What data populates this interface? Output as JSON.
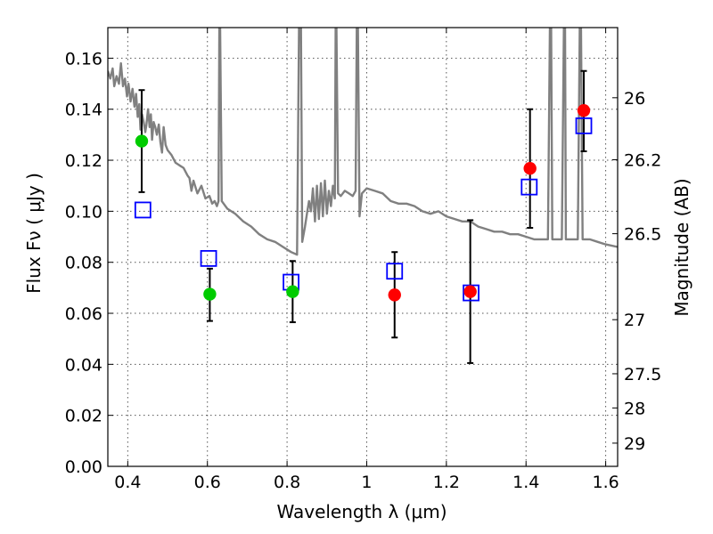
{
  "chart_data": {
    "type": "scatter",
    "xlabel": "Wavelength  λ (μm)",
    "ylabel": "Flux  Fν  ( μJy )",
    "ylabel_right": "Magnitude (AB)",
    "xlim": [
      0.35,
      1.63
    ],
    "ylim": [
      0.0,
      0.172
    ],
    "grid": true,
    "x_ticks": [
      0.4,
      0.6,
      0.8,
      1.0,
      1.2,
      1.4,
      1.6
    ],
    "x_tick_labels": [
      "0.4",
      "0.6",
      "0.8",
      "1",
      "1.2",
      "1.4",
      "1.6"
    ],
    "y_ticks": [
      0.0,
      0.02,
      0.04,
      0.06,
      0.08,
      0.1,
      0.12,
      0.14,
      0.16
    ],
    "y_tick_labels": [
      "0.00",
      "0.02",
      "0.04",
      "0.06",
      "0.08",
      "0.10",
      "0.12",
      "0.14",
      "0.16"
    ],
    "right_ticks": [
      {
        "label": "26",
        "flux": 0.1445
      },
      {
        "label": "26.2",
        "flux": 0.1202
      },
      {
        "label": "26.5",
        "flux": 0.0912
      },
      {
        "label": "27",
        "flux": 0.0575
      },
      {
        "label": "27.5",
        "flux": 0.0363
      },
      {
        "label": "28",
        "flux": 0.0229
      },
      {
        "label": "29",
        "flux": 0.0091
      }
    ],
    "observed": [
      {
        "x": 0.435,
        "y": 0.1275,
        "yerr_lo": 0.1075,
        "yerr_hi": 0.1475,
        "color": "#00cc00"
      },
      {
        "x": 0.606,
        "y": 0.0675,
        "yerr_lo": 0.057,
        "yerr_hi": 0.0775,
        "color": "#00cc00"
      },
      {
        "x": 0.814,
        "y": 0.0685,
        "yerr_lo": 0.0565,
        "yerr_hi": 0.0805,
        "color": "#00cc00"
      },
      {
        "x": 1.07,
        "y": 0.0672,
        "yerr_lo": 0.0505,
        "yerr_hi": 0.084,
        "color": "#ff0000"
      },
      {
        "x": 1.26,
        "y": 0.0685,
        "yerr_lo": 0.0405,
        "yerr_hi": 0.0965,
        "color": "#ff0000"
      },
      {
        "x": 1.41,
        "y": 0.1168,
        "yerr_lo": 0.0935,
        "yerr_hi": 0.14,
        "color": "#ff0000"
      },
      {
        "x": 1.545,
        "y": 0.1395,
        "yerr_lo": 0.1235,
        "yerr_hi": 0.155,
        "color": "#ff0000"
      }
    ],
    "model_fluxes": {
      "color": "#0000ff",
      "points": [
        {
          "x": 0.438,
          "y": 0.1005
        },
        {
          "x": 0.603,
          "y": 0.0815
        },
        {
          "x": 0.81,
          "y": 0.0722
        },
        {
          "x": 1.07,
          "y": 0.0765
        },
        {
          "x": 1.262,
          "y": 0.068
        },
        {
          "x": 1.408,
          "y": 0.1095
        },
        {
          "x": 1.545,
          "y": 0.1335
        }
      ]
    },
    "model_spectrum": {
      "color": "#808080",
      "points": [
        [
          0.35,
          0.155
        ],
        [
          0.356,
          0.152
        ],
        [
          0.362,
          0.156
        ],
        [
          0.366,
          0.149
        ],
        [
          0.372,
          0.153
        ],
        [
          0.378,
          0.15
        ],
        [
          0.383,
          0.158
        ],
        [
          0.388,
          0.149
        ],
        [
          0.393,
          0.152
        ],
        [
          0.398,
          0.145
        ],
        [
          0.402,
          0.15
        ],
        [
          0.407,
          0.143
        ],
        [
          0.412,
          0.148
        ],
        [
          0.417,
          0.141
        ],
        [
          0.421,
          0.146
        ],
        [
          0.425,
          0.137
        ],
        [
          0.429,
          0.142
        ],
        [
          0.432,
          0.132
        ],
        [
          0.436,
          0.138
        ],
        [
          0.44,
          0.135
        ],
        [
          0.444,
          0.131
        ],
        [
          0.447,
          0.134
        ],
        [
          0.451,
          0.14
        ],
        [
          0.455,
          0.133
        ],
        [
          0.458,
          0.138
        ],
        [
          0.461,
          0.128
        ],
        [
          0.465,
          0.135
        ],
        [
          0.469,
          0.133
        ],
        [
          0.473,
          0.13
        ],
        [
          0.478,
          0.134
        ],
        [
          0.482,
          0.127
        ],
        [
          0.486,
          0.123
        ],
        [
          0.49,
          0.133
        ],
        [
          0.495,
          0.126
        ],
        [
          0.5,
          0.124
        ],
        [
          0.51,
          0.122
        ],
        [
          0.52,
          0.119
        ],
        [
          0.53,
          0.118
        ],
        [
          0.54,
          0.117
        ],
        [
          0.55,
          0.114
        ],
        [
          0.555,
          0.113
        ],
        [
          0.56,
          0.108
        ],
        [
          0.565,
          0.112
        ],
        [
          0.575,
          0.107
        ],
        [
          0.585,
          0.11
        ],
        [
          0.595,
          0.105
        ],
        [
          0.605,
          0.106
        ],
        [
          0.612,
          0.103
        ],
        [
          0.618,
          0.104
        ],
        [
          0.624,
          0.102
        ],
        [
          0.628,
          0.104
        ],
        [
          0.63,
          0.172
        ],
        [
          0.632,
          0.172
        ],
        [
          0.636,
          0.104
        ],
        [
          0.65,
          0.101
        ],
        [
          0.67,
          0.099
        ],
        [
          0.69,
          0.096
        ],
        [
          0.71,
          0.094
        ],
        [
          0.73,
          0.091
        ],
        [
          0.75,
          0.089
        ],
        [
          0.77,
          0.088
        ],
        [
          0.79,
          0.086
        ],
        [
          0.81,
          0.084
        ],
        [
          0.825,
          0.083
        ],
        [
          0.83,
          0.172
        ],
        [
          0.835,
          0.172
        ],
        [
          0.838,
          0.088
        ],
        [
          0.845,
          0.094
        ],
        [
          0.85,
          0.099
        ],
        [
          0.855,
          0.104
        ],
        [
          0.86,
          0.1
        ],
        [
          0.865,
          0.109
        ],
        [
          0.87,
          0.096
        ],
        [
          0.875,
          0.11
        ],
        [
          0.88,
          0.097
        ],
        [
          0.885,
          0.111
        ],
        [
          0.89,
          0.098
        ],
        [
          0.895,
          0.112
        ],
        [
          0.9,
          0.099
        ],
        [
          0.905,
          0.108
        ],
        [
          0.91,
          0.102
        ],
        [
          0.915,
          0.11
        ],
        [
          0.92,
          0.105
        ],
        [
          0.922,
          0.172
        ],
        [
          0.924,
          0.172
        ],
        [
          0.928,
          0.107
        ],
        [
          0.935,
          0.106
        ],
        [
          0.945,
          0.108
        ],
        [
          0.955,
          0.107
        ],
        [
          0.965,
          0.106
        ],
        [
          0.972,
          0.108
        ],
        [
          0.975,
          0.172
        ],
        [
          0.978,
          0.172
        ],
        [
          0.982,
          0.098
        ],
        [
          0.988,
          0.107
        ],
        [
          1.0,
          0.109
        ],
        [
          1.02,
          0.108
        ],
        [
          1.04,
          0.107
        ],
        [
          1.06,
          0.104
        ],
        [
          1.08,
          0.103
        ],
        [
          1.1,
          0.103
        ],
        [
          1.12,
          0.102
        ],
        [
          1.14,
          0.1
        ],
        [
          1.16,
          0.099
        ],
        [
          1.18,
          0.1
        ],
        [
          1.2,
          0.098
        ],
        [
          1.22,
          0.097
        ],
        [
          1.24,
          0.096
        ],
        [
          1.26,
          0.096
        ],
        [
          1.28,
          0.094
        ],
        [
          1.3,
          0.093
        ],
        [
          1.32,
          0.092
        ],
        [
          1.34,
          0.092
        ],
        [
          1.36,
          0.091
        ],
        [
          1.38,
          0.091
        ],
        [
          1.4,
          0.09
        ],
        [
          1.42,
          0.089
        ],
        [
          1.44,
          0.089
        ],
        [
          1.455,
          0.089
        ],
        [
          1.46,
          0.172
        ],
        [
          1.463,
          0.172
        ],
        [
          1.466,
          0.089
        ],
        [
          1.48,
          0.089
        ],
        [
          1.49,
          0.089
        ],
        [
          1.495,
          0.172
        ],
        [
          1.498,
          0.172
        ],
        [
          1.5,
          0.089
        ],
        [
          1.52,
          0.089
        ],
        [
          1.53,
          0.089
        ],
        [
          1.535,
          0.172
        ],
        [
          1.538,
          0.172
        ],
        [
          1.542,
          0.089
        ],
        [
          1.56,
          0.089
        ],
        [
          1.58,
          0.088
        ],
        [
          1.6,
          0.087
        ],
        [
          1.63,
          0.086
        ]
      ]
    }
  }
}
